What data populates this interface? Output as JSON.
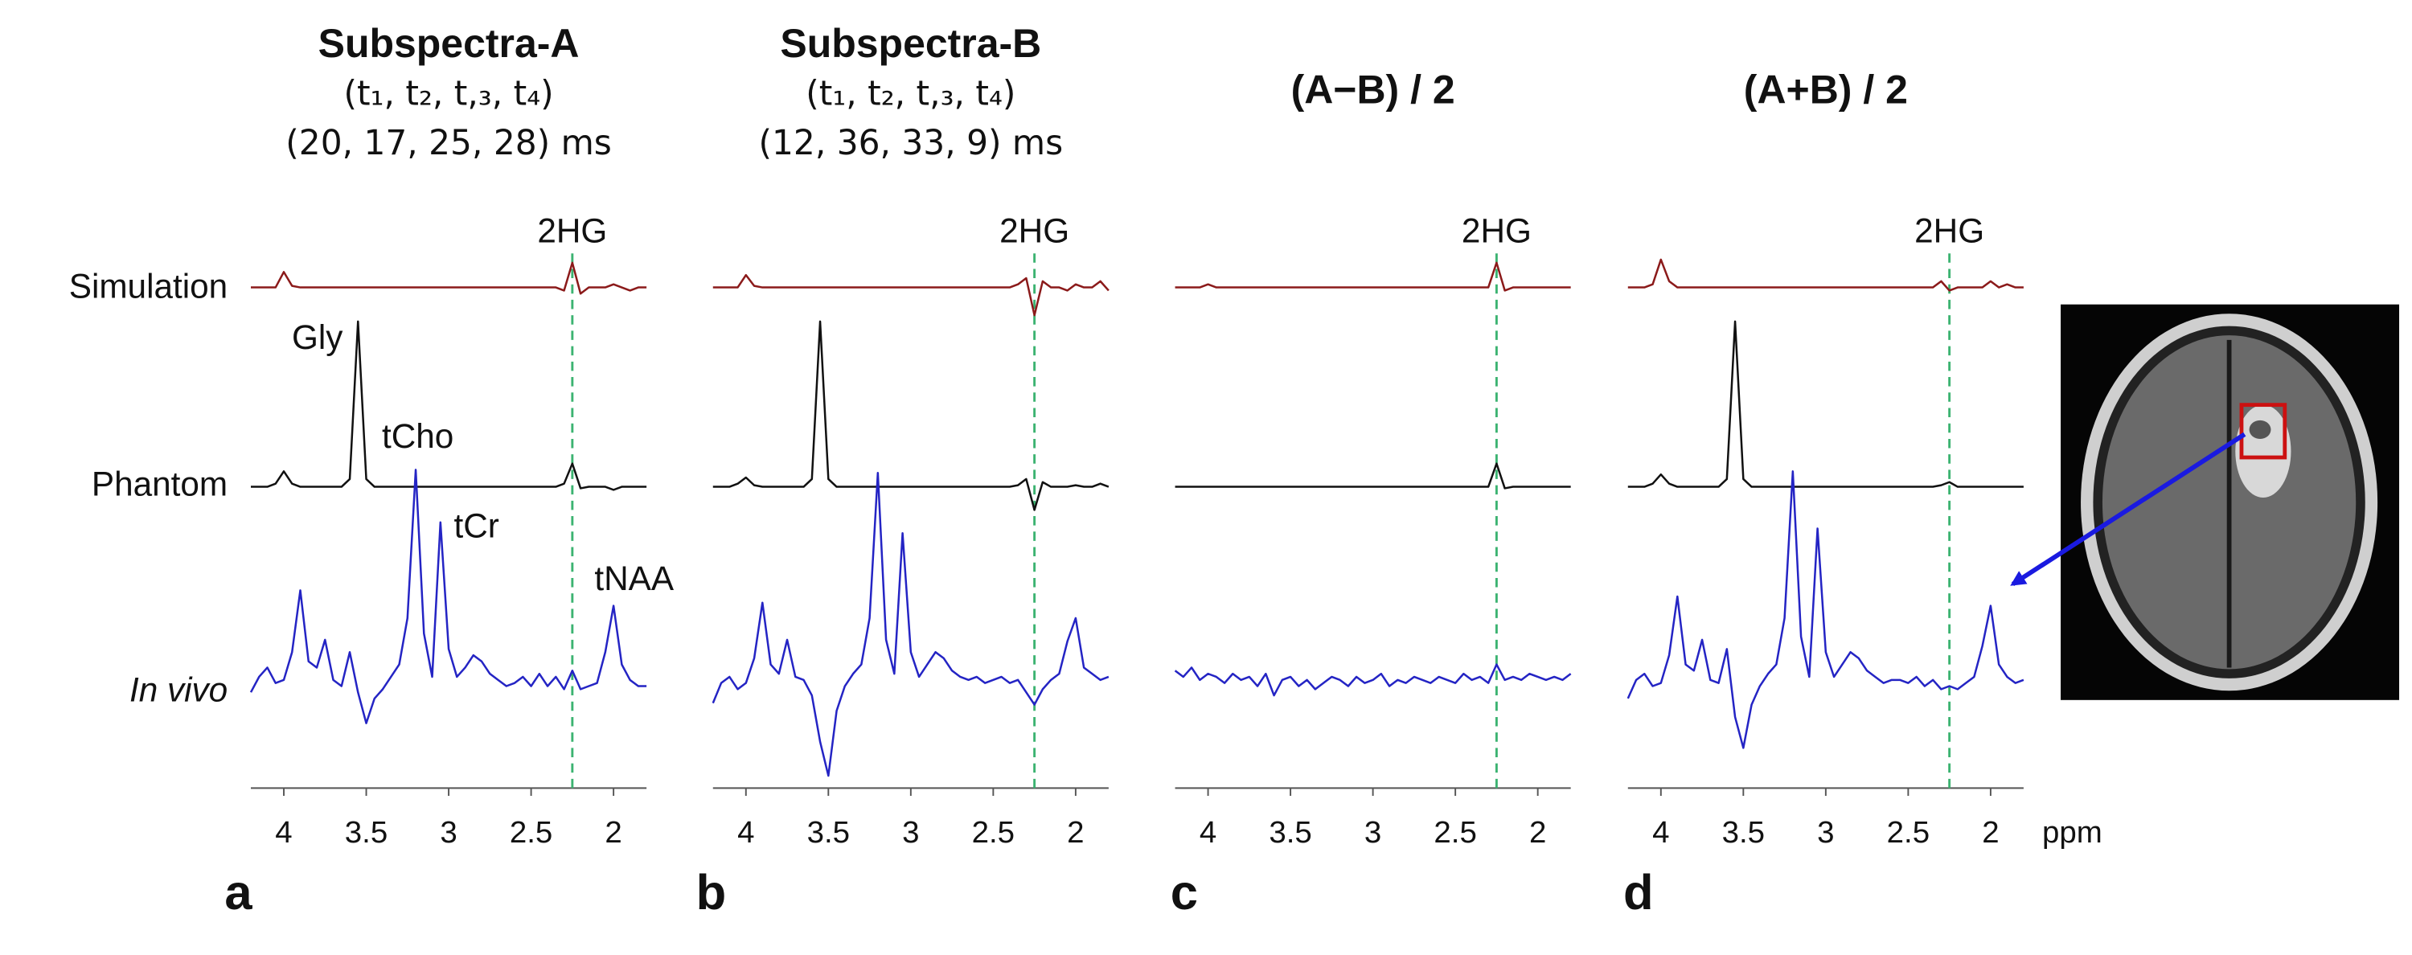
{
  "chart_data": [
    {
      "type": "line",
      "panel_label": "a",
      "title": "Subspectra-A",
      "subtitle": [
        "(t₁, t₂, t,₃, t₄)",
        "(20, 17, 25, 28) ms"
      ],
      "annotations": [
        "Gly",
        "tCho",
        "tCr",
        "tNAA"
      ],
      "marker": {
        "label": "2HG",
        "x": 2.25
      },
      "xlim": [
        4.2,
        1.8
      ],
      "xticks": [
        4,
        3.5,
        3,
        2.5,
        2
      ],
      "ylim": [
        0,
        400
      ],
      "x": [
        4.2,
        4.15,
        4.1,
        4.05,
        4.0,
        3.95,
        3.9,
        3.85,
        3.8,
        3.75,
        3.7,
        3.65,
        3.6,
        3.55,
        3.5,
        3.45,
        3.4,
        3.35,
        3.3,
        3.25,
        3.2,
        3.15,
        3.1,
        3.05,
        3.0,
        2.95,
        2.9,
        2.85,
        2.8,
        2.75,
        2.7,
        2.65,
        2.6,
        2.55,
        2.5,
        2.45,
        2.4,
        2.35,
        2.3,
        2.25,
        2.2,
        2.15,
        2.1,
        2.05,
        2.0,
        1.95,
        1.9,
        1.85,
        1.8
      ],
      "series": [
        {
          "name": "Simulation",
          "color": "#8b1a1a",
          "values": [
            324,
            324,
            324,
            324,
            334,
            325,
            324,
            324,
            324,
            324,
            324,
            324,
            324,
            324,
            324,
            324,
            324,
            324,
            324,
            324,
            324,
            324,
            324,
            324,
            324,
            324,
            324,
            324,
            324,
            324,
            324,
            324,
            324,
            324,
            324,
            324,
            324,
            324,
            322,
            340,
            320,
            324,
            324,
            324,
            326,
            324,
            322,
            324,
            324
          ]
        },
        {
          "name": "Phantom",
          "color": "#111111",
          "values": [
            195,
            195,
            195,
            197,
            205,
            197,
            195,
            195,
            195,
            195,
            195,
            195,
            200,
            302,
            200,
            195,
            195,
            195,
            195,
            195,
            195,
            195,
            195,
            195,
            195,
            195,
            195,
            195,
            195,
            195,
            195,
            195,
            195,
            195,
            195,
            195,
            195,
            195,
            197,
            210,
            194,
            195,
            195,
            195,
            193,
            195,
            195,
            195,
            195
          ]
        },
        {
          "name": "In vivo",
          "color": "#2424c4",
          "values": [
            62,
            72,
            78,
            68,
            70,
            88,
            128,
            82,
            78,
            96,
            70,
            66,
            88,
            62,
            42,
            58,
            64,
            72,
            80,
            110,
            206,
            100,
            72,
            172,
            90,
            72,
            78,
            86,
            82,
            74,
            70,
            66,
            68,
            72,
            66,
            74,
            66,
            72,
            64,
            76,
            64,
            66,
            68,
            88,
            118,
            80,
            70,
            66,
            66
          ]
        }
      ]
    },
    {
      "type": "line",
      "panel_label": "b",
      "title": "Subspectra-B",
      "subtitle": [
        "(t₁, t₂, t,₃, t₄)",
        "(12, 36, 33, 9) ms"
      ],
      "marker": {
        "label": "2HG",
        "x": 2.25
      },
      "xlim": [
        4.2,
        1.8
      ],
      "xticks": [
        4,
        3.5,
        3,
        2.5,
        2
      ],
      "ylim": [
        0,
        400
      ],
      "x": [
        4.2,
        4.15,
        4.1,
        4.05,
        4.0,
        3.95,
        3.9,
        3.85,
        3.8,
        3.75,
        3.7,
        3.65,
        3.6,
        3.55,
        3.5,
        3.45,
        3.4,
        3.35,
        3.3,
        3.25,
        3.2,
        3.15,
        3.1,
        3.05,
        3.0,
        2.95,
        2.9,
        2.85,
        2.8,
        2.75,
        2.7,
        2.65,
        2.6,
        2.55,
        2.5,
        2.45,
        2.4,
        2.35,
        2.3,
        2.25,
        2.2,
        2.15,
        2.1,
        2.05,
        2.0,
        1.95,
        1.9,
        1.85,
        1.8
      ],
      "series": [
        {
          "color": "#8b1a1a",
          "values": [
            324,
            324,
            324,
            324,
            332,
            325,
            324,
            324,
            324,
            324,
            324,
            324,
            324,
            324,
            324,
            324,
            324,
            324,
            324,
            324,
            324,
            324,
            324,
            324,
            324,
            324,
            324,
            324,
            324,
            324,
            324,
            324,
            324,
            324,
            324,
            324,
            324,
            326,
            330,
            306,
            328,
            324,
            324,
            322,
            326,
            324,
            324,
            328,
            322
          ]
        },
        {
          "color": "#111111",
          "values": [
            195,
            195,
            195,
            197,
            201,
            196,
            195,
            195,
            195,
            195,
            195,
            195,
            200,
            302,
            200,
            195,
            195,
            195,
            195,
            195,
            195,
            195,
            195,
            195,
            195,
            195,
            195,
            195,
            195,
            195,
            195,
            195,
            195,
            195,
            195,
            195,
            195,
            196,
            200,
            180,
            198,
            195,
            195,
            195,
            196,
            195,
            195,
            197,
            195
          ]
        },
        {
          "color": "#2424c4",
          "values": [
            55,
            68,
            72,
            64,
            68,
            84,
            120,
            80,
            74,
            96,
            72,
            70,
            60,
            30,
            8,
            50,
            66,
            74,
            80,
            110,
            204,
            96,
            74,
            165,
            88,
            72,
            80,
            88,
            84,
            76,
            72,
            70,
            72,
            68,
            70,
            72,
            68,
            70,
            62,
            54,
            64,
            70,
            74,
            95,
            110,
            78,
            74,
            70,
            72
          ]
        }
      ]
    },
    {
      "type": "line",
      "panel_label": "c",
      "title": "(A−B) / 2",
      "marker": {
        "label": "2HG",
        "x": 2.25
      },
      "xlim": [
        4.2,
        1.8
      ],
      "xticks": [
        4,
        3.5,
        3,
        2.5,
        2
      ],
      "ylim": [
        0,
        400
      ],
      "x": [
        4.2,
        4.15,
        4.1,
        4.05,
        4.0,
        3.95,
        3.9,
        3.85,
        3.8,
        3.75,
        3.7,
        3.65,
        3.6,
        3.55,
        3.5,
        3.45,
        3.4,
        3.35,
        3.3,
        3.25,
        3.2,
        3.15,
        3.1,
        3.05,
        3.0,
        2.95,
        2.9,
        2.85,
        2.8,
        2.75,
        2.7,
        2.65,
        2.6,
        2.55,
        2.5,
        2.45,
        2.4,
        2.35,
        2.3,
        2.25,
        2.2,
        2.15,
        2.1,
        2.05,
        2.0,
        1.95,
        1.9,
        1.85,
        1.8
      ],
      "series": [
        {
          "color": "#8b1a1a",
          "values": [
            324,
            324,
            324,
            324,
            326,
            324,
            324,
            324,
            324,
            324,
            324,
            324,
            324,
            324,
            324,
            324,
            324,
            324,
            324,
            324,
            324,
            324,
            324,
            324,
            324,
            324,
            324,
            324,
            324,
            324,
            324,
            324,
            324,
            324,
            324,
            324,
            324,
            324,
            324,
            340,
            322,
            324,
            324,
            324,
            324,
            324,
            324,
            324,
            324
          ]
        },
        {
          "color": "#111111",
          "values": [
            195,
            195,
            195,
            195,
            195,
            195,
            195,
            195,
            195,
            195,
            195,
            195,
            195,
            195,
            195,
            195,
            195,
            195,
            195,
            195,
            195,
            195,
            195,
            195,
            195,
            195,
            195,
            195,
            195,
            195,
            195,
            195,
            195,
            195,
            195,
            195,
            195,
            195,
            195,
            210,
            194,
            195,
            195,
            195,
            195,
            195,
            195,
            195,
            195
          ]
        },
        {
          "color": "#2424c4",
          "values": [
            76,
            72,
            78,
            70,
            74,
            72,
            68,
            74,
            70,
            72,
            66,
            74,
            60,
            70,
            72,
            66,
            70,
            64,
            68,
            72,
            70,
            66,
            72,
            68,
            70,
            74,
            66,
            70,
            68,
            72,
            70,
            68,
            72,
            70,
            68,
            74,
            70,
            72,
            68,
            80,
            70,
            72,
            70,
            74,
            72,
            70,
            72,
            70,
            74
          ]
        }
      ]
    },
    {
      "type": "line",
      "panel_label": "d",
      "title": "(A+B) / 2",
      "x_label": "ppm",
      "marker": {
        "label": "2HG",
        "x": 2.25
      },
      "xlim": [
        4.2,
        1.8
      ],
      "xticks": [
        4,
        3.5,
        3,
        2.5,
        2
      ],
      "ylim": [
        0,
        400
      ],
      "x": [
        4.2,
        4.15,
        4.1,
        4.05,
        4.0,
        3.95,
        3.9,
        3.85,
        3.8,
        3.75,
        3.7,
        3.65,
        3.6,
        3.55,
        3.5,
        3.45,
        3.4,
        3.35,
        3.3,
        3.25,
        3.2,
        3.15,
        3.1,
        3.05,
        3.0,
        2.95,
        2.9,
        2.85,
        2.8,
        2.75,
        2.7,
        2.65,
        2.6,
        2.55,
        2.5,
        2.45,
        2.4,
        2.35,
        2.3,
        2.25,
        2.2,
        2.15,
        2.1,
        2.05,
        2.0,
        1.95,
        1.9,
        1.85,
        1.8
      ],
      "series": [
        {
          "color": "#8b1a1a",
          "values": [
            324,
            324,
            324,
            326,
            342,
            328,
            324,
            324,
            324,
            324,
            324,
            324,
            324,
            324,
            324,
            324,
            324,
            324,
            324,
            324,
            324,
            324,
            324,
            324,
            324,
            324,
            324,
            324,
            324,
            324,
            324,
            324,
            324,
            324,
            324,
            324,
            324,
            324,
            328,
            322,
            324,
            324,
            324,
            324,
            328,
            324,
            326,
            324,
            324
          ]
        },
        {
          "color": "#111111",
          "values": [
            195,
            195,
            195,
            197,
            203,
            197,
            195,
            195,
            195,
            195,
            195,
            195,
            200,
            302,
            200,
            195,
            195,
            195,
            195,
            195,
            195,
            195,
            195,
            195,
            195,
            195,
            195,
            195,
            195,
            195,
            195,
            195,
            195,
            195,
            195,
            195,
            195,
            195,
            196,
            198,
            195,
            195,
            195,
            195,
            195,
            195,
            195,
            195,
            195
          ]
        },
        {
          "color": "#2424c4",
          "values": [
            58,
            70,
            74,
            66,
            68,
            86,
            124,
            80,
            76,
            96,
            70,
            68,
            90,
            46,
            26,
            54,
            66,
            74,
            80,
            110,
            205,
            98,
            72,
            168,
            88,
            72,
            80,
            88,
            84,
            76,
            72,
            68,
            70,
            70,
            68,
            72,
            66,
            70,
            64,
            66,
            64,
            68,
            72,
            92,
            118,
            80,
            72,
            68,
            70
          ]
        }
      ]
    }
  ]
}
